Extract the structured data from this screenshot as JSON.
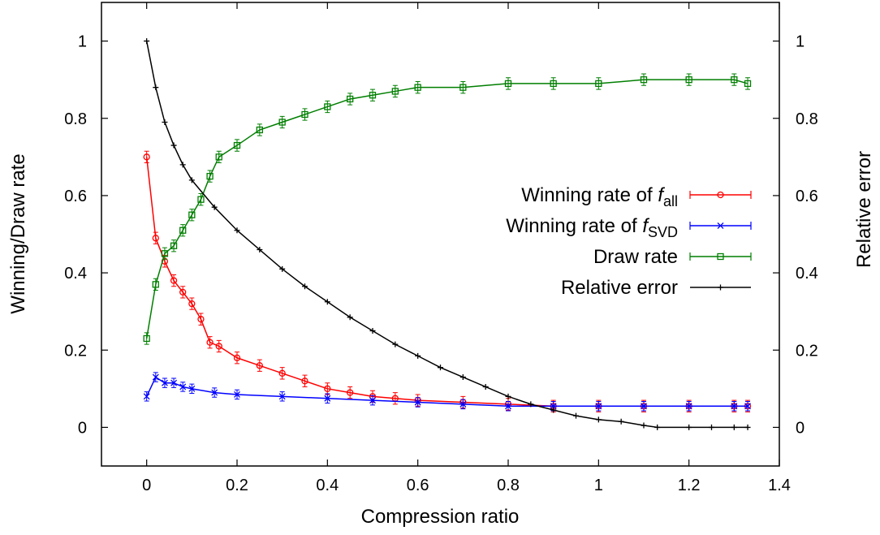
{
  "chart_data": {
    "type": "line",
    "xlabel": "Compression ratio",
    "ylabel": "Winning/Draw rate",
    "y2label": "Relative error",
    "xlim": [
      -0.1,
      1.4
    ],
    "ylim": [
      -0.1,
      1.1
    ],
    "y2lim": [
      -0.1,
      1.1
    ],
    "xticks": [
      "0",
      "0.2",
      "0.4",
      "0.6",
      "0.8",
      "1",
      "1.2",
      "1.4"
    ],
    "xtick_values": [
      0,
      0.2,
      0.4,
      0.6,
      0.8,
      1.0,
      1.2,
      1.4
    ],
    "yticks": [
      "0",
      "0.2",
      "0.4",
      "0.6",
      "0.8",
      "1"
    ],
    "ytick_values": [
      0,
      0.2,
      0.4,
      0.6,
      0.8,
      1.0
    ],
    "y2ticks": [
      "0",
      "0.2",
      "0.4",
      "0.6",
      "0.8",
      "1"
    ],
    "grid": false,
    "legend_position": "right-middle",
    "series": [
      {
        "name": "Winning rate of f_all",
        "legend_prefix": "Winning rate of ",
        "legend_italic": "f",
        "legend_sub": "all",
        "color": "#ff0000",
        "marker": "circle",
        "error_bars": true,
        "x": [
          0,
          0.02,
          0.04,
          0.06,
          0.08,
          0.1,
          0.12,
          0.14,
          0.16,
          0.2,
          0.25,
          0.3,
          0.35,
          0.4,
          0.45,
          0.5,
          0.55,
          0.6,
          0.7,
          0.8,
          0.9,
          1.0,
          1.1,
          1.2,
          1.3,
          1.33
        ],
        "y": [
          0.7,
          0.49,
          0.43,
          0.38,
          0.35,
          0.32,
          0.28,
          0.22,
          0.21,
          0.18,
          0.16,
          0.14,
          0.12,
          0.1,
          0.09,
          0.08,
          0.075,
          0.07,
          0.065,
          0.06,
          0.055,
          0.055,
          0.055,
          0.055,
          0.055,
          0.055
        ],
        "err": 0.015
      },
      {
        "name": "Winning rate of f_SVD",
        "legend_prefix": "Winning rate of ",
        "legend_italic": "f",
        "legend_sub": "SVD",
        "color": "#0000ff",
        "marker": "x",
        "error_bars": true,
        "x": [
          0,
          0.02,
          0.04,
          0.06,
          0.08,
          0.1,
          0.15,
          0.2,
          0.3,
          0.4,
          0.5,
          0.6,
          0.7,
          0.8,
          0.9,
          1.0,
          1.1,
          1.2,
          1.3,
          1.33
        ],
        "y": [
          0.08,
          0.13,
          0.115,
          0.115,
          0.105,
          0.1,
          0.09,
          0.085,
          0.08,
          0.075,
          0.07,
          0.065,
          0.06,
          0.055,
          0.055,
          0.055,
          0.055,
          0.055,
          0.055,
          0.055
        ],
        "err": 0.012
      },
      {
        "name": "Draw rate",
        "legend_prefix": "Draw rate",
        "legend_italic": "",
        "legend_sub": "",
        "color": "#007f00",
        "marker": "square",
        "error_bars": true,
        "x": [
          0,
          0.02,
          0.04,
          0.06,
          0.08,
          0.1,
          0.12,
          0.14,
          0.16,
          0.2,
          0.25,
          0.3,
          0.35,
          0.4,
          0.45,
          0.5,
          0.55,
          0.6,
          0.7,
          0.8,
          0.9,
          1.0,
          1.1,
          1.2,
          1.3,
          1.33
        ],
        "y": [
          0.23,
          0.37,
          0.45,
          0.47,
          0.51,
          0.55,
          0.59,
          0.65,
          0.7,
          0.73,
          0.77,
          0.79,
          0.81,
          0.83,
          0.85,
          0.86,
          0.87,
          0.88,
          0.88,
          0.89,
          0.89,
          0.89,
          0.9,
          0.9,
          0.9,
          0.89
        ],
        "err": 0.015
      },
      {
        "name": "Relative error",
        "legend_prefix": "Relative error",
        "legend_italic": "",
        "legend_sub": "",
        "color": "#000000",
        "marker": "plus",
        "error_bars": false,
        "axis": "y2",
        "x": [
          0,
          0.02,
          0.04,
          0.06,
          0.08,
          0.1,
          0.15,
          0.2,
          0.25,
          0.3,
          0.35,
          0.4,
          0.45,
          0.5,
          0.55,
          0.6,
          0.65,
          0.7,
          0.75,
          0.8,
          0.85,
          0.9,
          0.95,
          1.0,
          1.05,
          1.1,
          1.13,
          1.2,
          1.25,
          1.3,
          1.33
        ],
        "y": [
          1.0,
          0.88,
          0.79,
          0.73,
          0.68,
          0.64,
          0.57,
          0.51,
          0.46,
          0.41,
          0.365,
          0.325,
          0.285,
          0.25,
          0.215,
          0.185,
          0.155,
          0.13,
          0.105,
          0.08,
          0.06,
          0.045,
          0.03,
          0.02,
          0.015,
          0.005,
          0.0,
          0.0,
          0.0,
          0.0,
          0.0
        ]
      }
    ]
  }
}
